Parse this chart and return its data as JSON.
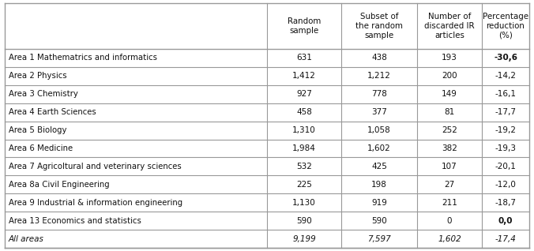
{
  "col_headers": [
    "Random\nsample",
    "Subset of\nthe random\nsample",
    "Number of\ndiscarded IR\narticles",
    "Percentage\nreduction\n(%)"
  ],
  "rows": [
    {
      "label": "Area 1 Mathematrics and informatics",
      "v1": "631",
      "v2": "438",
      "v3": "193",
      "v4": "-30,6",
      "bold4": true
    },
    {
      "label": "Area 2 Physics",
      "v1": "1,412",
      "v2": "1,212",
      "v3": "200",
      "v4": "-14,2",
      "bold4": false
    },
    {
      "label": "Area 3 Chemistry",
      "v1": "927",
      "v2": "778",
      "v3": "149",
      "v4": "-16,1",
      "bold4": false
    },
    {
      "label": "Area 4 Earth Sciences",
      "v1": "458",
      "v2": "377",
      "v3": "81",
      "v4": "-17,7",
      "bold4": false
    },
    {
      "label": "Area 5 Biology",
      "v1": "1,310",
      "v2": "1,058",
      "v3": "252",
      "v4": "-19,2",
      "bold4": false
    },
    {
      "label": "Area 6 Medicine",
      "v1": "1,984",
      "v2": "1,602",
      "v3": "382",
      "v4": "-19,3",
      "bold4": false
    },
    {
      "label": "Area 7 Agricoltural and veterinary sciences",
      "v1": "532",
      "v2": "425",
      "v3": "107",
      "v4": "-20,1",
      "bold4": false
    },
    {
      "label": "Area 8a Civil Engineering",
      "v1": "225",
      "v2": "198",
      "v3": "27",
      "v4": "-12,0",
      "bold4": false
    },
    {
      "label": "Area 9 Industrial & information engineering",
      "v1": "1,130",
      "v2": "919",
      "v3": "211",
      "v4": "-18,7",
      "bold4": false
    },
    {
      "label": "Area 13 Economics and statistics",
      "v1": "590",
      "v2": "590",
      "v3": "0",
      "v4": "0,0",
      "bold4": true
    }
  ],
  "total": {
    "label": "All areas",
    "v1": "9,199",
    "v2": "7,597",
    "v3": "1,602",
    "v4": "-17,4"
  },
  "bg_color": "#ffffff",
  "line_color": "#999999",
  "text_color": "#111111"
}
